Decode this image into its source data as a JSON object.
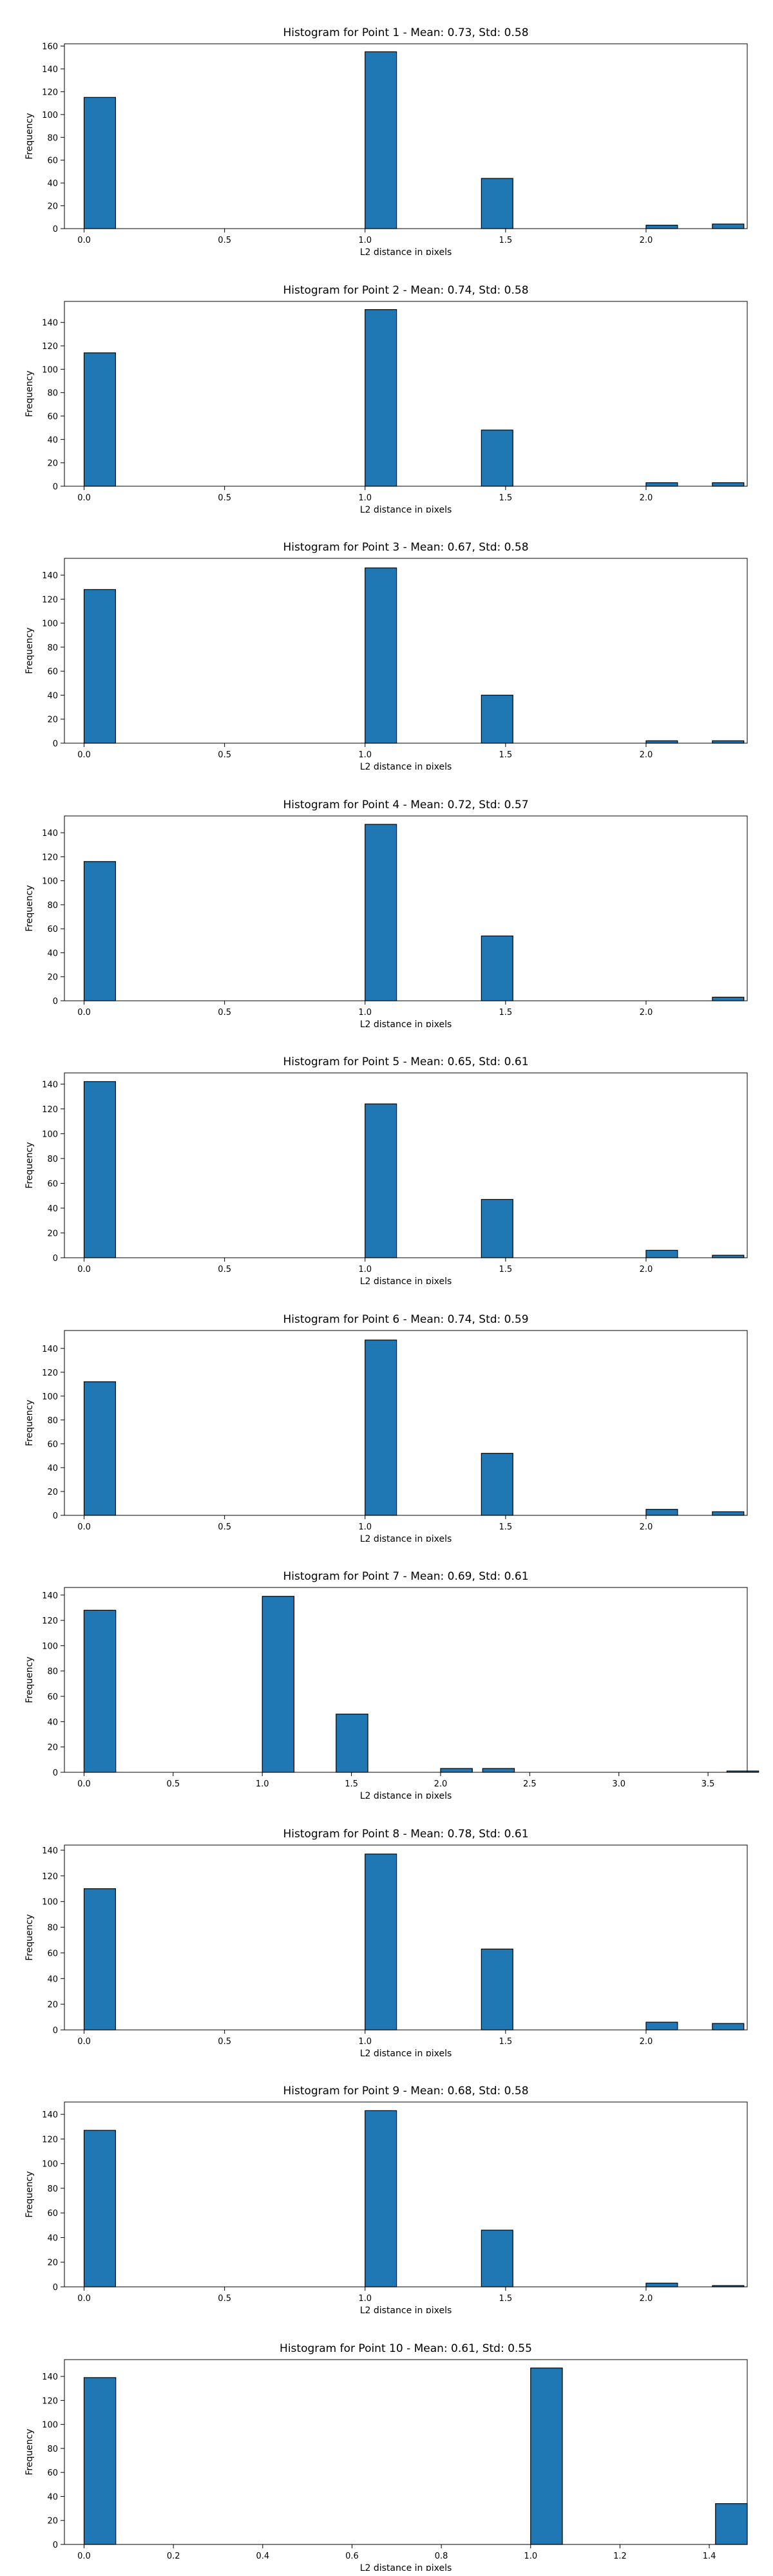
{
  "chart_data": [
    {
      "type": "bar",
      "title": "Histogram for Point 1 - Mean: 0.73, Std: 0.58",
      "xlabel": "L2 distance in pixels",
      "ylabel": "Frequency",
      "xlim": [
        -0.07,
        2.36
      ],
      "ylim": [
        0,
        162
      ],
      "xticks": [
        0.0,
        0.5,
        1.0,
        1.5,
        2.0
      ],
      "yticks": [
        0,
        20,
        40,
        60,
        80,
        100,
        120,
        140,
        160
      ],
      "bin_width": 0.112,
      "bins": [
        {
          "x": 0.0,
          "value": 115
        },
        {
          "x": 1.0,
          "value": 155
        },
        {
          "x": 1.414,
          "value": 44
        },
        {
          "x": 2.0,
          "value": 3
        },
        {
          "x": 2.236,
          "value": 4
        }
      ]
    },
    {
      "type": "bar",
      "title": "Histogram for Point 2 - Mean: 0.74, Std: 0.58",
      "xlabel": "L2 distance in pixels",
      "ylabel": "Frequency",
      "xlim": [
        -0.07,
        2.36
      ],
      "ylim": [
        0,
        158
      ],
      "xticks": [
        0.0,
        0.5,
        1.0,
        1.5,
        2.0
      ],
      "yticks": [
        0,
        20,
        40,
        60,
        80,
        100,
        120,
        140
      ],
      "bin_width": 0.112,
      "bins": [
        {
          "x": 0.0,
          "value": 114
        },
        {
          "x": 1.0,
          "value": 151
        },
        {
          "x": 1.414,
          "value": 48
        },
        {
          "x": 2.0,
          "value": 3
        },
        {
          "x": 2.236,
          "value": 3
        }
      ]
    },
    {
      "type": "bar",
      "title": "Histogram for Point 3 - Mean: 0.67, Std: 0.58",
      "xlabel": "L2 distance in pixels",
      "ylabel": "Frequency",
      "xlim": [
        -0.07,
        2.36
      ],
      "ylim": [
        0,
        154
      ],
      "xticks": [
        0.0,
        0.5,
        1.0,
        1.5,
        2.0
      ],
      "yticks": [
        0,
        20,
        40,
        60,
        80,
        100,
        120,
        140
      ],
      "bin_width": 0.112,
      "bins": [
        {
          "x": 0.0,
          "value": 128
        },
        {
          "x": 1.0,
          "value": 146
        },
        {
          "x": 1.414,
          "value": 40
        },
        {
          "x": 2.0,
          "value": 2
        },
        {
          "x": 2.236,
          "value": 2
        }
      ]
    },
    {
      "type": "bar",
      "title": "Histogram for Point 4 - Mean: 0.72, Std: 0.57",
      "xlabel": "L2 distance in pixels",
      "ylabel": "Frequency",
      "xlim": [
        -0.07,
        2.36
      ],
      "ylim": [
        0,
        154
      ],
      "xticks": [
        0.0,
        0.5,
        1.0,
        1.5,
        2.0
      ],
      "yticks": [
        0,
        20,
        40,
        60,
        80,
        100,
        120,
        140
      ],
      "bin_width": 0.112,
      "bins": [
        {
          "x": 0.0,
          "value": 116
        },
        {
          "x": 1.0,
          "value": 147
        },
        {
          "x": 1.414,
          "value": 54
        },
        {
          "x": 2.236,
          "value": 3
        }
      ]
    },
    {
      "type": "bar",
      "title": "Histogram for Point 5 - Mean: 0.65, Std: 0.61",
      "xlabel": "L2 distance in pixels",
      "ylabel": "Frequency",
      "xlim": [
        -0.07,
        2.36
      ],
      "ylim": [
        0,
        149
      ],
      "xticks": [
        0.0,
        0.5,
        1.0,
        1.5,
        2.0
      ],
      "yticks": [
        0,
        20,
        40,
        60,
        80,
        100,
        120,
        140
      ],
      "bin_width": 0.112,
      "bins": [
        {
          "x": 0.0,
          "value": 142
        },
        {
          "x": 1.0,
          "value": 124
        },
        {
          "x": 1.414,
          "value": 47
        },
        {
          "x": 2.0,
          "value": 6
        },
        {
          "x": 2.236,
          "value": 2
        }
      ]
    },
    {
      "type": "bar",
      "title": "Histogram for Point 6 - Mean: 0.74, Std: 0.59",
      "xlabel": "L2 distance in pixels",
      "ylabel": "Frequency",
      "xlim": [
        -0.07,
        2.36
      ],
      "ylim": [
        0,
        155
      ],
      "xticks": [
        0.0,
        0.5,
        1.0,
        1.5,
        2.0
      ],
      "yticks": [
        0,
        20,
        40,
        60,
        80,
        100,
        120,
        140
      ],
      "bin_width": 0.112,
      "bins": [
        {
          "x": 0.0,
          "value": 112
        },
        {
          "x": 1.0,
          "value": 147
        },
        {
          "x": 1.414,
          "value": 52
        },
        {
          "x": 2.0,
          "value": 5
        },
        {
          "x": 2.236,
          "value": 3
        }
      ]
    },
    {
      "type": "bar",
      "title": "Histogram for Point 7 - Mean: 0.69, Std: 0.61",
      "xlabel": "L2 distance in pixels",
      "ylabel": "Frequency",
      "xlim": [
        -0.11,
        3.72
      ],
      "ylim": [
        0,
        146
      ],
      "xticks": [
        0.0,
        0.5,
        1.0,
        1.5,
        2.0,
        2.5,
        3.0,
        3.5
      ],
      "yticks": [
        0,
        20,
        40,
        60,
        80,
        100,
        120,
        140
      ],
      "bin_width": 0.178,
      "bins": [
        {
          "x": 0.0,
          "value": 128
        },
        {
          "x": 1.0,
          "value": 139
        },
        {
          "x": 1.414,
          "value": 46
        },
        {
          "x": 2.0,
          "value": 3
        },
        {
          "x": 2.236,
          "value": 3
        },
        {
          "x": 3.606,
          "value": 1
        }
      ]
    },
    {
      "type": "bar",
      "title": "Histogram for Point 8 - Mean: 0.78, Std: 0.61",
      "xlabel": "L2 distance in pixels",
      "ylabel": "Frequency",
      "xlim": [
        -0.07,
        2.36
      ],
      "ylim": [
        0,
        144
      ],
      "xticks": [
        0.0,
        0.5,
        1.0,
        1.5,
        2.0
      ],
      "yticks": [
        0,
        20,
        40,
        60,
        80,
        100,
        120,
        140
      ],
      "bin_width": 0.112,
      "bins": [
        {
          "x": 0.0,
          "value": 110
        },
        {
          "x": 1.0,
          "value": 137
        },
        {
          "x": 1.414,
          "value": 63
        },
        {
          "x": 2.0,
          "value": 6
        },
        {
          "x": 2.236,
          "value": 5
        }
      ]
    },
    {
      "type": "bar",
      "title": "Histogram for Point 9 - Mean: 0.68, Std: 0.58",
      "xlabel": "L2 distance in pixels",
      "ylabel": "Frequency",
      "xlim": [
        -0.07,
        2.36
      ],
      "ylim": [
        0,
        150
      ],
      "xticks": [
        0.0,
        0.5,
        1.0,
        1.5,
        2.0
      ],
      "yticks": [
        0,
        20,
        40,
        60,
        80,
        100,
        120,
        140
      ],
      "bin_width": 0.112,
      "bins": [
        {
          "x": 0.0,
          "value": 127
        },
        {
          "x": 1.0,
          "value": 143
        },
        {
          "x": 1.414,
          "value": 46
        },
        {
          "x": 2.0,
          "value": 3
        },
        {
          "x": 2.236,
          "value": 1
        }
      ]
    },
    {
      "type": "bar",
      "title": "Histogram for Point 10 - Mean: 0.61, Std: 0.55",
      "xlabel": "L2 distance in pixels",
      "ylabel": "Frequency",
      "xlim": [
        -0.044,
        1.485
      ],
      "ylim": [
        0,
        154
      ],
      "xticks": [
        0.0,
        0.2,
        0.4,
        0.6,
        0.8,
        1.0,
        1.2,
        1.4
      ],
      "yticks": [
        0,
        20,
        40,
        60,
        80,
        100,
        120,
        140
      ],
      "bin_width": 0.071,
      "bins": [
        {
          "x": 0.0,
          "value": 139
        },
        {
          "x": 1.0,
          "value": 147
        },
        {
          "x": 1.414,
          "value": 34
        }
      ]
    }
  ]
}
